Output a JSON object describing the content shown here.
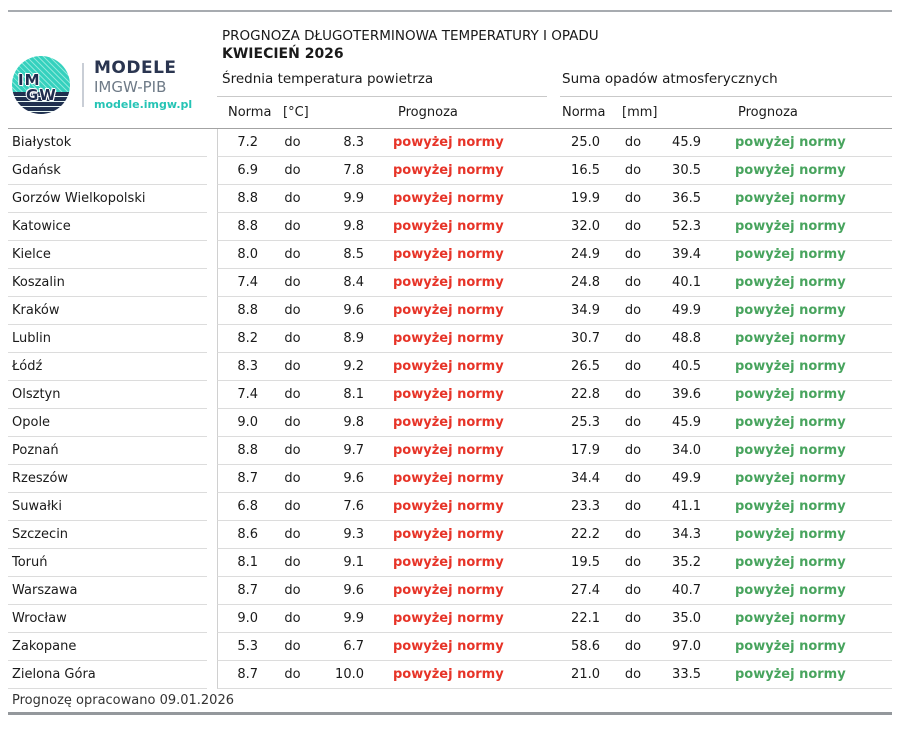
{
  "colors": {
    "above_norm_temp": "#e73428",
    "above_norm_precip": "#48a45e",
    "brand_teal": "#25c4b5",
    "brand_navy": "#2a3550"
  },
  "logo": {
    "monogram_top": "IM",
    "monogram_bottom": "GW",
    "brand": "MODELE",
    "org": "IMGW-PIB",
    "site": "modele.imgw.pl"
  },
  "header": {
    "title": "PROGNOZA DŁUGOTERMINOWA TEMPERATURY I OPADU",
    "period": "KWIECIEŃ 2026"
  },
  "table": {
    "temp_group_label": "Średnia temperatura powietrza",
    "precip_group_label": "Suma opadów atmosferycznych",
    "columns": {
      "norma": "Norma",
      "temp_unit": "[°C]",
      "precip_unit": "[mm]",
      "prognoza": "Prognoza"
    },
    "range_word": "do",
    "rows": [
      {
        "city": "Białystok",
        "temp_low": "7.2",
        "temp_high": "8.3",
        "temp_forecast": "powyżej normy",
        "precip_low": "25.0",
        "precip_high": "45.9",
        "precip_forecast": "powyżej normy"
      },
      {
        "city": "Gdańsk",
        "temp_low": "6.9",
        "temp_high": "7.8",
        "temp_forecast": "powyżej normy",
        "precip_low": "16.5",
        "precip_high": "30.5",
        "precip_forecast": "powyżej normy"
      },
      {
        "city": "Gorzów Wielkopolski",
        "temp_low": "8.8",
        "temp_high": "9.9",
        "temp_forecast": "powyżej normy",
        "precip_low": "19.9",
        "precip_high": "36.5",
        "precip_forecast": "powyżej normy"
      },
      {
        "city": "Katowice",
        "temp_low": "8.8",
        "temp_high": "9.8",
        "temp_forecast": "powyżej normy",
        "precip_low": "32.0",
        "precip_high": "52.3",
        "precip_forecast": "powyżej normy"
      },
      {
        "city": "Kielce",
        "temp_low": "8.0",
        "temp_high": "8.5",
        "temp_forecast": "powyżej normy",
        "precip_low": "24.9",
        "precip_high": "39.4",
        "precip_forecast": "powyżej normy"
      },
      {
        "city": "Koszalin",
        "temp_low": "7.4",
        "temp_high": "8.4",
        "temp_forecast": "powyżej normy",
        "precip_low": "24.8",
        "precip_high": "40.1",
        "precip_forecast": "powyżej normy"
      },
      {
        "city": "Kraków",
        "temp_low": "8.8",
        "temp_high": "9.6",
        "temp_forecast": "powyżej normy",
        "precip_low": "34.9",
        "precip_high": "49.9",
        "precip_forecast": "powyżej normy"
      },
      {
        "city": "Lublin",
        "temp_low": "8.2",
        "temp_high": "8.9",
        "temp_forecast": "powyżej normy",
        "precip_low": "30.7",
        "precip_high": "48.8",
        "precip_forecast": "powyżej normy"
      },
      {
        "city": "Łódź",
        "temp_low": "8.3",
        "temp_high": "9.2",
        "temp_forecast": "powyżej normy",
        "precip_low": "26.5",
        "precip_high": "40.5",
        "precip_forecast": "powyżej normy"
      },
      {
        "city": "Olsztyn",
        "temp_low": "7.4",
        "temp_high": "8.1",
        "temp_forecast": "powyżej normy",
        "precip_low": "22.8",
        "precip_high": "39.6",
        "precip_forecast": "powyżej normy"
      },
      {
        "city": "Opole",
        "temp_low": "9.0",
        "temp_high": "9.8",
        "temp_forecast": "powyżej normy",
        "precip_low": "25.3",
        "precip_high": "45.9",
        "precip_forecast": "powyżej normy"
      },
      {
        "city": "Poznań",
        "temp_low": "8.8",
        "temp_high": "9.7",
        "temp_forecast": "powyżej normy",
        "precip_low": "17.9",
        "precip_high": "34.0",
        "precip_forecast": "powyżej normy"
      },
      {
        "city": "Rzeszów",
        "temp_low": "8.7",
        "temp_high": "9.6",
        "temp_forecast": "powyżej normy",
        "precip_low": "34.4",
        "precip_high": "49.9",
        "precip_forecast": "powyżej normy"
      },
      {
        "city": "Suwałki",
        "temp_low": "6.8",
        "temp_high": "7.6",
        "temp_forecast": "powyżej normy",
        "precip_low": "23.3",
        "precip_high": "41.1",
        "precip_forecast": "powyżej normy"
      },
      {
        "city": "Szczecin",
        "temp_low": "8.6",
        "temp_high": "9.3",
        "temp_forecast": "powyżej normy",
        "precip_low": "22.2",
        "precip_high": "34.3",
        "precip_forecast": "powyżej normy"
      },
      {
        "city": "Toruń",
        "temp_low": "8.1",
        "temp_high": "9.1",
        "temp_forecast": "powyżej normy",
        "precip_low": "19.5",
        "precip_high": "35.2",
        "precip_forecast": "powyżej normy"
      },
      {
        "city": "Warszawa",
        "temp_low": "8.7",
        "temp_high": "9.6",
        "temp_forecast": "powyżej normy",
        "precip_low": "27.4",
        "precip_high": "40.7",
        "precip_forecast": "powyżej normy"
      },
      {
        "city": "Wrocław",
        "temp_low": "9.0",
        "temp_high": "9.9",
        "temp_forecast": "powyżej normy",
        "precip_low": "22.1",
        "precip_high": "35.0",
        "precip_forecast": "powyżej normy"
      },
      {
        "city": "Zakopane",
        "temp_low": "5.3",
        "temp_high": "6.7",
        "temp_forecast": "powyżej normy",
        "precip_low": "58.6",
        "precip_high": "97.0",
        "precip_forecast": "powyżej normy"
      },
      {
        "city": "Zielona Góra",
        "temp_low": "8.7",
        "temp_high": "10.0",
        "temp_forecast": "powyżej normy",
        "precip_low": "21.0",
        "precip_high": "33.5",
        "precip_forecast": "powyżej normy"
      }
    ]
  },
  "footer": {
    "note": "Prognozę opracowano 09.01.2026"
  }
}
